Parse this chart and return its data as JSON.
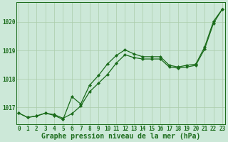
{
  "background_color": "#cce8d8",
  "plot_bg_color": "#cce8d8",
  "line_color": "#1a6b1a",
  "grid_color": "#aaccaa",
  "title": "Graphe pression niveau de la mer (hPa)",
  "xlabel_hours": [
    0,
    1,
    2,
    3,
    4,
    5,
    6,
    7,
    8,
    9,
    10,
    11,
    12,
    13,
    14,
    15,
    16,
    17,
    18,
    19,
    20,
    21,
    22,
    23
  ],
  "ylim": [
    1016.4,
    1020.7
  ],
  "yticks": [
    1017,
    1018,
    1019,
    1020
  ],
  "series1": [
    1016.8,
    1016.65,
    1016.7,
    1016.8,
    1016.75,
    1016.62,
    1016.78,
    1017.05,
    1017.55,
    1017.85,
    1018.15,
    1018.55,
    1018.85,
    1018.75,
    1018.7,
    1018.7,
    1018.7,
    1018.42,
    1018.38,
    1018.42,
    1018.48,
    1019.05,
    1019.95,
    1020.45
  ],
  "series2": [
    1016.8,
    1016.65,
    1016.7,
    1016.8,
    1016.72,
    1016.58,
    1017.38,
    1017.12,
    1017.78,
    1018.12,
    1018.52,
    1018.82,
    1019.02,
    1018.88,
    1018.78,
    1018.78,
    1018.78,
    1018.48,
    1018.42,
    1018.48,
    1018.52,
    1019.12,
    1020.02,
    1020.45
  ],
  "title_fontsize": 7.0,
  "tick_fontsize": 5.5
}
